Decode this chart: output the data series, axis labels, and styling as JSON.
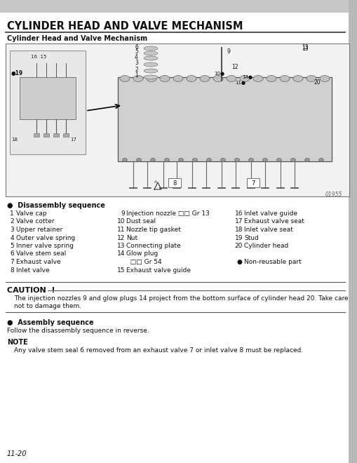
{
  "title": "CYLINDER HEAD AND VALVE MECHANISM",
  "subtitle": "Cylinder Head and Valve Mechanism",
  "bg_color": "#ffffff",
  "diagram_ref": "01955",
  "disassembly_label": "●  Disassembly sequence",
  "parts_col1": [
    [
      "1",
      "Valve cap"
    ],
    [
      "2",
      "Valve cotter"
    ],
    [
      "3",
      "Upper retainer"
    ],
    [
      "4",
      "Outer valve spring"
    ],
    [
      "5",
      "Inner valve spring"
    ],
    [
      "6",
      "Valve stem seal"
    ],
    [
      "7",
      "Exhaust valve"
    ],
    [
      "8",
      "Inlet valve"
    ]
  ],
  "parts_col2": [
    [
      "9",
      "Injection nozzle □□ Gr 13"
    ],
    [
      "10",
      "Dust seal"
    ],
    [
      "11",
      "Nozzle tip gasket"
    ],
    [
      "12",
      "Nut"
    ],
    [
      "13",
      "Connecting plate"
    ],
    [
      "14",
      "Glow plug"
    ],
    [
      "",
      "  □□ Gr 54"
    ],
    [
      "15",
      "Exhaust valve guide"
    ]
  ],
  "parts_col3": [
    [
      "16",
      "Inlet valve guide"
    ],
    [
      "17",
      "Exhaust valve seat"
    ],
    [
      "18",
      "Inlet valve seat"
    ],
    [
      "19",
      "Stud"
    ],
    [
      "20",
      "Cylinder head"
    ],
    [
      "",
      ""
    ],
    [
      "●",
      "Non-reusable part"
    ],
    [
      "",
      ""
    ]
  ],
  "caution_title": "CAUTION  !",
  "caution_text1": "The injection nozzles 9 and glow plugs 14 project from the bottom surface of cylinder head 20. Take care",
  "caution_text2": "not to damage them.",
  "assembly_label": "●  Assembly sequence",
  "assembly_text": "Follow the disassembly sequence in reverse.",
  "note_title": "NOTE",
  "note_text": "Any valve stem seal 6 removed from an exhaust valve 7 or inlet valve 8 must be replaced.",
  "page_number": "11-20",
  "header_bg": "#cccccc",
  "text_color": "#111111",
  "diagram_border": "#888888",
  "right_bar_color": "#aaaaaa"
}
